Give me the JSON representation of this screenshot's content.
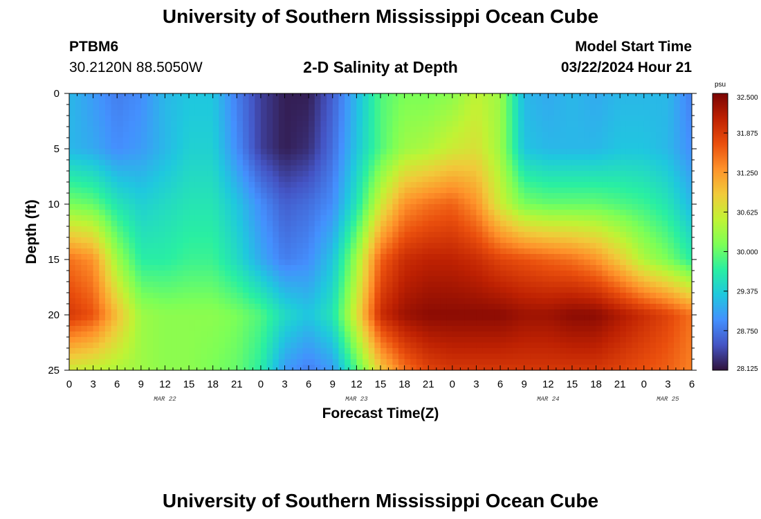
{
  "header": {
    "title": "University of Southern Mississippi Ocean Cube",
    "station": "PTBM6",
    "coords": "30.2120N  88.5050W",
    "subtitle": "2-D Salinity at Depth",
    "start_label": "Model Start Time",
    "start_value": "03/22/2024 Hour 21"
  },
  "footer": {
    "title": "University of Southern Mississippi Ocean Cube"
  },
  "chart_data": {
    "type": "heatmap",
    "title": "2-D Salinity at Depth",
    "xlabel": "Forecast Time(Z)",
    "ylabel": "Depth (ft)",
    "colorbar_unit": "psu",
    "x_tick_labels": [
      "0",
      "3",
      "6",
      "9",
      "12",
      "15",
      "18",
      "21",
      "0",
      "3",
      "6",
      "9",
      "12",
      "15",
      "18",
      "21",
      "0",
      "3",
      "6",
      "9",
      "12",
      "15",
      "18",
      "21",
      "0",
      "3",
      "6"
    ],
    "date_labels": [
      {
        "label": "MAR 22",
        "tick": 4
      },
      {
        "label": "MAR 23",
        "tick": 12
      },
      {
        "label": "MAR 24",
        "tick": 20
      },
      {
        "label": "MAR 25",
        "tick": 25
      }
    ],
    "y_ticks": [
      0,
      5,
      10,
      15,
      20,
      25
    ],
    "ylim": [
      25,
      0
    ],
    "x_hours": [
      0,
      78
    ],
    "clim": [
      28.125,
      32.5
    ],
    "colorbar_ticks": [
      "32.500",
      "31.875",
      "31.250",
      "30.625",
      "30.000",
      "29.375",
      "28.750",
      "28.125"
    ],
    "colormap": [
      "#30123b",
      "#4454c4",
      "#4490fe",
      "#1fc8de",
      "#29efa2",
      "#7dff56",
      "#c1f334",
      "#f1ca3a",
      "#fe922a",
      "#ea4f0d",
      "#be2102",
      "#7a0403"
    ],
    "depth_levels": [
      0,
      5,
      10,
      15,
      20,
      25
    ],
    "hours": [
      0,
      3,
      6,
      9,
      12,
      15,
      18,
      21,
      24,
      27,
      30,
      33,
      36,
      39,
      42,
      45,
      48,
      51,
      54,
      57,
      60,
      63,
      66,
      69,
      72,
      75,
      78
    ],
    "salinity": [
      [
        29.2,
        29.0,
        28.8,
        28.9,
        29.2,
        29.3,
        29.3,
        28.8,
        28.4,
        28.2,
        28.2,
        28.6,
        29.2,
        29.9,
        30.1,
        30.1,
        30.2,
        30.5,
        30.3,
        29.2,
        29.1,
        29.2,
        29.1,
        29.2,
        29.2,
        29.2,
        28.8
      ],
      [
        29.2,
        29.1,
        28.9,
        29.0,
        29.2,
        29.4,
        29.4,
        28.9,
        28.4,
        28.2,
        28.3,
        28.7,
        29.3,
        29.9,
        30.3,
        30.4,
        30.6,
        30.7,
        30.3,
        29.3,
        29.2,
        29.2,
        29.2,
        29.3,
        29.3,
        29.2,
        28.9
      ],
      [
        30.1,
        30.0,
        29.6,
        29.4,
        29.5,
        29.6,
        29.6,
        29.3,
        28.9,
        28.6,
        28.7,
        28.9,
        29.6,
        30.6,
        31.3,
        31.5,
        31.6,
        31.3,
        30.6,
        30.1,
        30.0,
        30.0,
        30.0,
        29.9,
        29.8,
        29.6,
        29.2
      ],
      [
        31.5,
        31.3,
        30.3,
        29.7,
        29.7,
        29.8,
        29.8,
        29.5,
        29.1,
        28.8,
        28.9,
        29.3,
        30.3,
        31.6,
        32.0,
        32.1,
        32.1,
        32.0,
        31.8,
        31.7,
        31.6,
        31.5,
        31.3,
        30.9,
        30.4,
        30.1,
        29.7
      ],
      [
        31.9,
        31.7,
        31.0,
        30.3,
        30.2,
        30.2,
        30.2,
        30.1,
        29.9,
        29.5,
        29.3,
        29.6,
        30.7,
        32.0,
        32.3,
        32.4,
        32.4,
        32.4,
        32.4,
        32.3,
        32.3,
        32.4,
        32.4,
        32.2,
        32.0,
        31.8,
        31.5
      ],
      [
        30.6,
        30.5,
        30.4,
        30.3,
        30.2,
        30.2,
        30.1,
        30.0,
        29.7,
        29.0,
        28.8,
        29.0,
        29.9,
        30.9,
        31.5,
        31.8,
        31.9,
        31.9,
        31.9,
        31.9,
        31.9,
        31.9,
        31.9,
        31.8,
        31.7,
        31.6,
        31.4
      ]
    ]
  }
}
